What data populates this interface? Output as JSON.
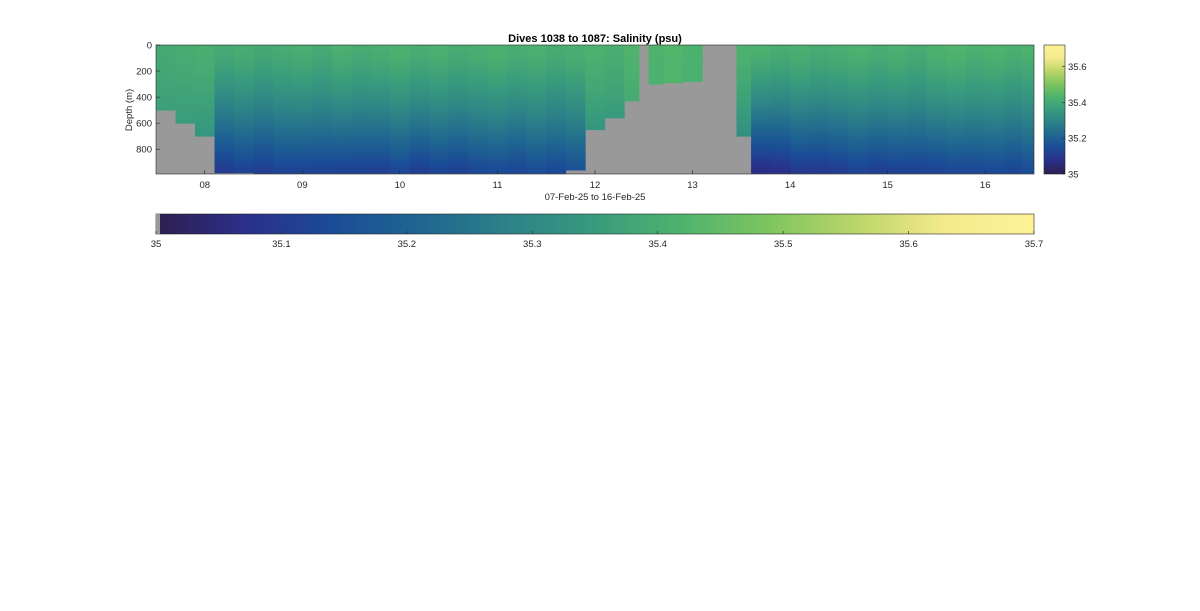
{
  "chart_data": {
    "type": "heatmap",
    "title": "Dives 1038 to 1087: Salinity (psu)",
    "xlabel": "07-Feb-25 to 16-Feb-25",
    "ylabel": "Depth (m)",
    "x_range_days": [
      7.5,
      16.5
    ],
    "y_range_m": [
      0,
      990
    ],
    "y_reversed": true,
    "x_tick_values": [
      8,
      9,
      10,
      11,
      12,
      13,
      14,
      15,
      16
    ],
    "x_tick_labels": [
      "08",
      "09",
      "10",
      "11",
      "12",
      "13",
      "14",
      "15",
      "16"
    ],
    "y_tick_values": [
      0,
      200,
      400,
      600,
      800
    ],
    "y_tick_labels": [
      "0",
      "200",
      "400",
      "600",
      "800"
    ],
    "no_data_color": "#999999",
    "colorbar_right": {
      "range": [
        35.0,
        35.72
      ],
      "tick_values": [
        35,
        35.2,
        35.4,
        35.6
      ],
      "tick_labels": [
        "35",
        "35.2",
        "35.4",
        "35.6"
      ]
    },
    "colorbar_bottom": {
      "range": [
        35.0,
        35.7
      ],
      "tick_values": [
        35,
        35.1,
        35.2,
        35.3,
        35.4,
        35.5,
        35.6,
        35.7
      ],
      "tick_labels": [
        "35",
        "35.1",
        "35.2",
        "35.3",
        "35.4",
        "35.5",
        "35.6",
        "35.7"
      ]
    },
    "colormap": [
      "#2c1e4f",
      "#2b2f88",
      "#1b4b96",
      "#1f6691",
      "#2d8188",
      "#389b7d",
      "#4fb36d",
      "#7fc55f",
      "#bcd669",
      "#f5ea8d",
      "#fef296"
    ],
    "profiles": [
      {
        "x": 7.6,
        "max_depth": 500,
        "s_surface": 35.41,
        "s_deep": 35.34
      },
      {
        "x": 7.8,
        "max_depth": 600,
        "s_surface": 35.41,
        "s_deep": 35.32
      },
      {
        "x": 8.0,
        "max_depth": 700,
        "s_surface": 35.41,
        "s_deep": 35.3
      },
      {
        "x": 8.2,
        "max_depth": 980,
        "s_surface": 35.41,
        "s_deep": 35.11
      },
      {
        "x": 8.4,
        "max_depth": 980,
        "s_surface": 35.41,
        "s_deep": 35.12
      },
      {
        "x": 8.6,
        "max_depth": 985,
        "s_surface": 35.41,
        "s_deep": 35.12
      },
      {
        "x": 8.8,
        "max_depth": 985,
        "s_surface": 35.41,
        "s_deep": 35.13
      },
      {
        "x": 9.0,
        "max_depth": 985,
        "s_surface": 35.41,
        "s_deep": 35.12
      },
      {
        "x": 9.2,
        "max_depth": 985,
        "s_surface": 35.41,
        "s_deep": 35.13
      },
      {
        "x": 9.4,
        "max_depth": 985,
        "s_surface": 35.42,
        "s_deep": 35.12
      },
      {
        "x": 9.6,
        "max_depth": 985,
        "s_surface": 35.42,
        "s_deep": 35.13
      },
      {
        "x": 9.8,
        "max_depth": 985,
        "s_surface": 35.42,
        "s_deep": 35.12
      },
      {
        "x": 10.0,
        "max_depth": 985,
        "s_surface": 35.42,
        "s_deep": 35.13
      },
      {
        "x": 10.2,
        "max_depth": 985,
        "s_surface": 35.42,
        "s_deep": 35.12
      },
      {
        "x": 10.4,
        "max_depth": 985,
        "s_surface": 35.42,
        "s_deep": 35.13
      },
      {
        "x": 10.6,
        "max_depth": 985,
        "s_surface": 35.42,
        "s_deep": 35.13
      },
      {
        "x": 10.8,
        "max_depth": 985,
        "s_surface": 35.42,
        "s_deep": 35.14
      },
      {
        "x": 11.0,
        "max_depth": 985,
        "s_surface": 35.42,
        "s_deep": 35.14
      },
      {
        "x": 11.2,
        "max_depth": 985,
        "s_surface": 35.42,
        "s_deep": 35.14
      },
      {
        "x": 11.4,
        "max_depth": 985,
        "s_surface": 35.42,
        "s_deep": 35.15
      },
      {
        "x": 11.6,
        "max_depth": 985,
        "s_surface": 35.42,
        "s_deep": 35.15
      },
      {
        "x": 11.8,
        "max_depth": 960,
        "s_surface": 35.42,
        "s_deep": 35.16
      },
      {
        "x": 12.0,
        "max_depth": 650,
        "s_surface": 35.42,
        "s_deep": 35.28
      },
      {
        "x": 12.2,
        "max_depth": 560,
        "s_surface": 35.42,
        "s_deep": 35.3
      },
      {
        "x": 12.4,
        "max_depth": 430,
        "s_surface": 35.43,
        "s_deep": 35.35
      },
      {
        "x": 12.5,
        "max_depth": 0,
        "s_surface": 35.43,
        "s_deep": 35.43
      },
      {
        "x": 12.6,
        "max_depth": 300,
        "s_surface": 35.43,
        "s_deep": 35.4
      },
      {
        "x": 12.8,
        "max_depth": 290,
        "s_surface": 35.43,
        "s_deep": 35.41
      },
      {
        "x": 13.0,
        "max_depth": 280,
        "s_surface": 35.43,
        "s_deep": 35.41
      },
      {
        "x": 13.2,
        "max_depth": 0,
        "s_surface": 35.43,
        "s_deep": 35.43
      },
      {
        "x": 13.4,
        "max_depth": 0,
        "s_surface": 35.43,
        "s_deep": 35.43
      },
      {
        "x": 13.5,
        "max_depth": 700,
        "s_surface": 35.43,
        "s_deep": 35.27
      },
      {
        "x": 13.7,
        "max_depth": 985,
        "s_surface": 35.42,
        "s_deep": 35.06
      },
      {
        "x": 13.9,
        "max_depth": 985,
        "s_surface": 35.42,
        "s_deep": 35.08
      },
      {
        "x": 14.1,
        "max_depth": 985,
        "s_surface": 35.42,
        "s_deep": 35.1
      },
      {
        "x": 14.3,
        "max_depth": 985,
        "s_surface": 35.42,
        "s_deep": 35.11
      },
      {
        "x": 14.5,
        "max_depth": 985,
        "s_surface": 35.42,
        "s_deep": 35.11
      },
      {
        "x": 14.7,
        "max_depth": 985,
        "s_surface": 35.42,
        "s_deep": 35.12
      },
      {
        "x": 14.9,
        "max_depth": 985,
        "s_surface": 35.42,
        "s_deep": 35.12
      },
      {
        "x": 15.1,
        "max_depth": 985,
        "s_surface": 35.42,
        "s_deep": 35.12
      },
      {
        "x": 15.3,
        "max_depth": 985,
        "s_surface": 35.42,
        "s_deep": 35.13
      },
      {
        "x": 15.5,
        "max_depth": 985,
        "s_surface": 35.43,
        "s_deep": 35.13
      },
      {
        "x": 15.7,
        "max_depth": 985,
        "s_surface": 35.43,
        "s_deep": 35.13
      },
      {
        "x": 15.9,
        "max_depth": 985,
        "s_surface": 35.43,
        "s_deep": 35.14
      },
      {
        "x": 16.1,
        "max_depth": 985,
        "s_surface": 35.43,
        "s_deep": 35.14
      },
      {
        "x": 16.3,
        "max_depth": 985,
        "s_surface": 35.43,
        "s_deep": 35.14
      },
      {
        "x": 16.45,
        "max_depth": 985,
        "s_surface": 35.43,
        "s_deep": 35.15
      }
    ]
  }
}
